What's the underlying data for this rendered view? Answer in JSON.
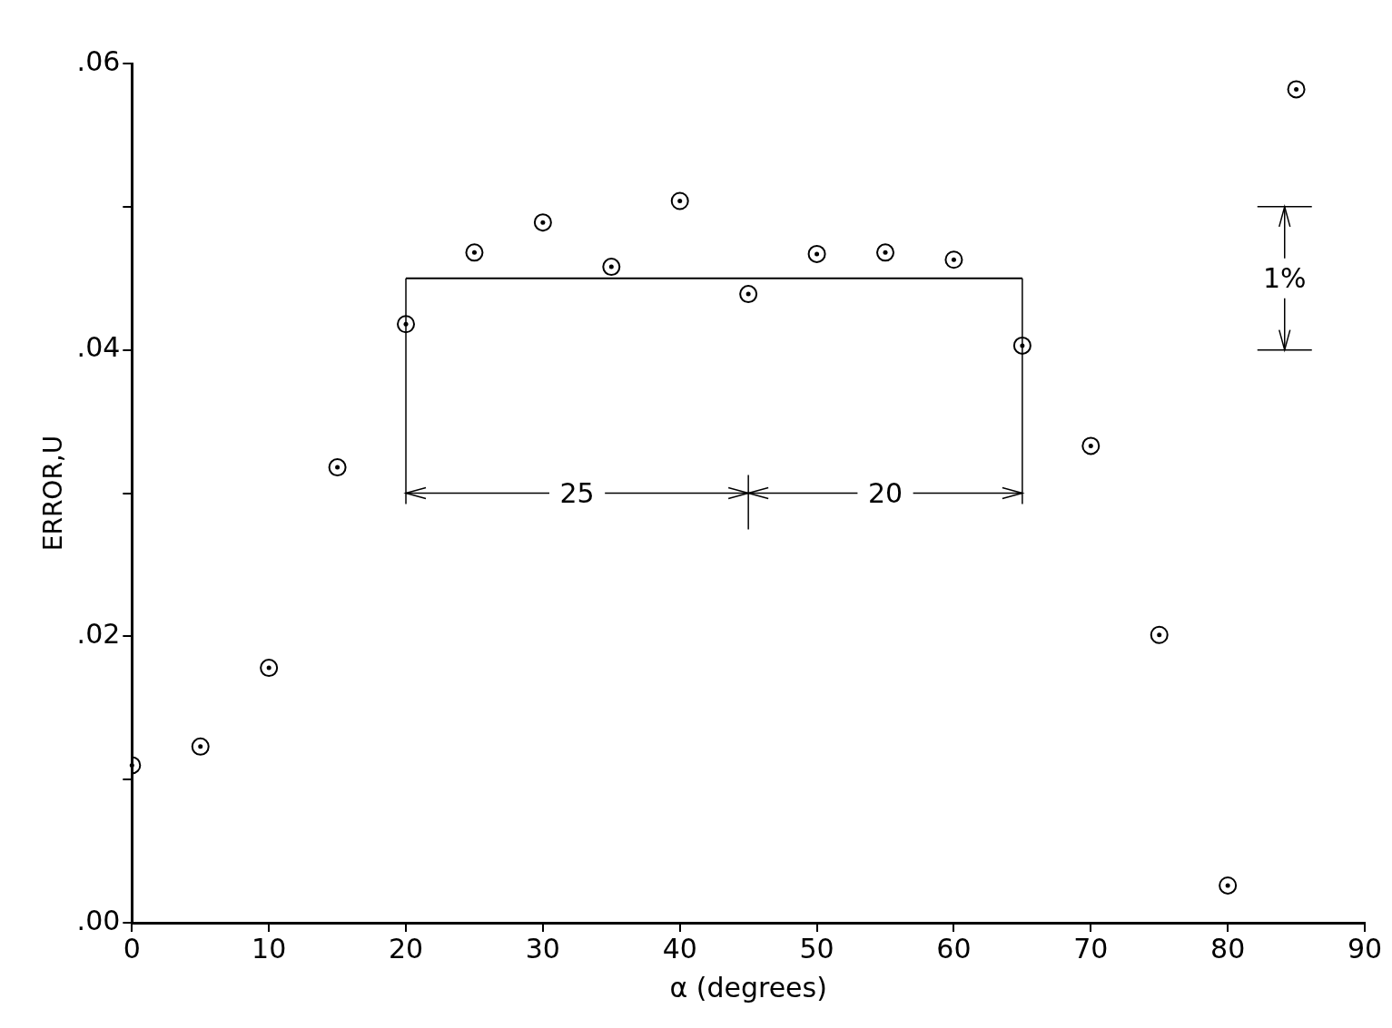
{
  "chart_data": {
    "type": "scatter",
    "xlabel": "α (degrees)",
    "ylabel": "ERROR,U",
    "x": [
      0,
      5,
      10,
      15,
      20,
      25,
      30,
      35,
      40,
      45,
      50,
      55,
      60,
      65,
      70,
      75,
      80,
      85
    ],
    "series": [
      {
        "color": "#000000",
        "marker": "circle",
        "values": [
          0.011,
          0.0123,
          0.0178,
          0.0318,
          0.0418,
          0.0468,
          0.0489,
          0.0458,
          0.0504,
          0.0439,
          0.0467,
          0.0468,
          0.0463,
          0.0403,
          0.0333,
          0.0201,
          0.0026,
          0.0582
        ]
      },
      {
        "type": "line",
        "color": "#000000",
        "marker": "none",
        "x": [
          20,
          65
        ],
        "values": [
          0.045,
          0.045
        ]
      }
    ],
    "xlim": [
      0,
      90
    ],
    "xticks": [
      0,
      10,
      20,
      30,
      40,
      50,
      60,
      70,
      80,
      90
    ],
    "ylim": [
      0,
      0.06
    ],
    "yticks": [
      {
        "value": 0,
        "label": ".00"
      },
      {
        "value": 0.01,
        "label": null
      },
      {
        "value": 0.02,
        "label": ".02"
      },
      {
        "value": 0.03,
        "label": null
      },
      {
        "value": 0.04,
        "label": ".04"
      },
      {
        "value": 0.05,
        "label": null
      },
      {
        "value": 0.06,
        "label": ".06"
      }
    ],
    "annotations": [
      "25",
      "20",
      "1%"
    ],
    "legend": false
  }
}
